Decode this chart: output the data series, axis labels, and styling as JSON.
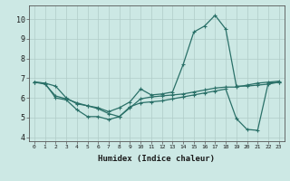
{
  "xlabel": "Humidex (Indice chaleur)",
  "bg_color": "#cce8e4",
  "grid_color": "#b0ccc8",
  "line_color": "#2a7068",
  "xlim": [
    -0.5,
    23.5
  ],
  "ylim": [
    3.8,
    10.7
  ],
  "yticks": [
    4,
    5,
    6,
    7,
    8,
    9,
    10
  ],
  "xticks": [
    0,
    1,
    2,
    3,
    4,
    5,
    6,
    7,
    8,
    9,
    10,
    11,
    12,
    13,
    14,
    15,
    16,
    17,
    18,
    19,
    20,
    21,
    22,
    23
  ],
  "line1_x": [
    0,
    1,
    2,
    3,
    4,
    5,
    6,
    7,
    8,
    9,
    10,
    11,
    12,
    13,
    14,
    15,
    16,
    17,
    18,
    19,
    20,
    21,
    22,
    23
  ],
  "line1_y": [
    6.8,
    6.75,
    6.6,
    6.0,
    5.7,
    5.6,
    5.5,
    5.3,
    5.5,
    5.8,
    6.45,
    6.15,
    6.2,
    6.3,
    7.7,
    9.35,
    9.65,
    10.2,
    9.5,
    6.6,
    6.6,
    6.65,
    6.7,
    6.8
  ],
  "line2_x": [
    0,
    1,
    2,
    3,
    4,
    5,
    6,
    7,
    8,
    9,
    10,
    11,
    12,
    13,
    14,
    15,
    16,
    17,
    18,
    19,
    20,
    21,
    22,
    23
  ],
  "line2_y": [
    6.8,
    6.75,
    6.0,
    5.9,
    5.4,
    5.05,
    5.05,
    4.9,
    5.05,
    5.55,
    5.75,
    5.8,
    5.85,
    5.95,
    6.05,
    6.15,
    6.25,
    6.35,
    6.45,
    4.95,
    4.4,
    4.35,
    6.75,
    6.8
  ],
  "line3_x": [
    0,
    1,
    2,
    3,
    4,
    5,
    6,
    7,
    8,
    9,
    10,
    11,
    12,
    13,
    14,
    15,
    16,
    17,
    18,
    19,
    20,
    21,
    22,
    23
  ],
  "line3_y": [
    6.8,
    6.7,
    6.1,
    5.95,
    5.75,
    5.6,
    5.45,
    5.2,
    5.05,
    5.5,
    5.95,
    6.05,
    6.1,
    6.15,
    6.2,
    6.3,
    6.4,
    6.5,
    6.55,
    6.55,
    6.65,
    6.75,
    6.8,
    6.85
  ]
}
